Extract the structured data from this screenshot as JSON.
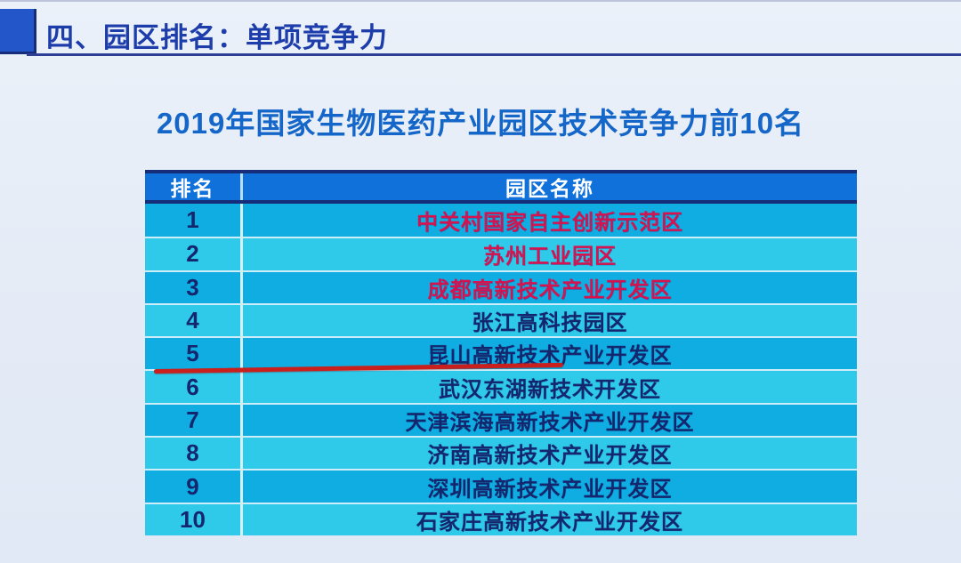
{
  "header": {
    "section_title": "四、园区排名：单项竞争力"
  },
  "title": "2019年国家生物医药产业园区技术竞争力前10名",
  "table": {
    "columns": [
      "排名",
      "园区名称"
    ],
    "rows": [
      {
        "rank": "1",
        "name": "中关村国家自主创新示范区",
        "emphasis": "red",
        "underlined": false
      },
      {
        "rank": "2",
        "name": "苏州工业园区",
        "emphasis": "red",
        "underlined": false
      },
      {
        "rank": "3",
        "name": "成都高新技术产业开发区",
        "emphasis": "red",
        "underlined": false
      },
      {
        "rank": "4",
        "name": "张江高科技园区",
        "emphasis": "navy",
        "underlined": false
      },
      {
        "rank": "5",
        "name": "昆山高新技术产业开发区",
        "emphasis": "navy",
        "underlined": true
      },
      {
        "rank": "6",
        "name": "武汉东湖新技术开发区",
        "emphasis": "navy",
        "underlined": false
      },
      {
        "rank": "7",
        "name": "天津滨海高新技术产业开发区",
        "emphasis": "navy",
        "underlined": false
      },
      {
        "rank": "8",
        "name": "济南高新技术产业开发区",
        "emphasis": "navy",
        "underlined": false
      },
      {
        "rank": "9",
        "name": "深圳高新技术产业开发区",
        "emphasis": "navy",
        "underlined": false
      },
      {
        "rank": "10",
        "name": "石家庄高新技术产业开发区",
        "emphasis": "navy",
        "underlined": false
      }
    ]
  },
  "colors": {
    "slide_bg": "#e6ecf6",
    "section_text": "#1d3dab",
    "section_square": "#2356c9",
    "header_rule": "#2e4096",
    "title_text": "#1566c9",
    "table_header_bg": "#1171db",
    "table_header_border": "#162d7a",
    "row_odd_bg": "#0fade2",
    "row_even_bg": "#2fc9ea",
    "row_divider": "#cdeef8",
    "rank_text": "#14276e",
    "name_text_navy": "#14276e",
    "name_text_red": "#d6134f",
    "underline_red": "#c9201d"
  }
}
